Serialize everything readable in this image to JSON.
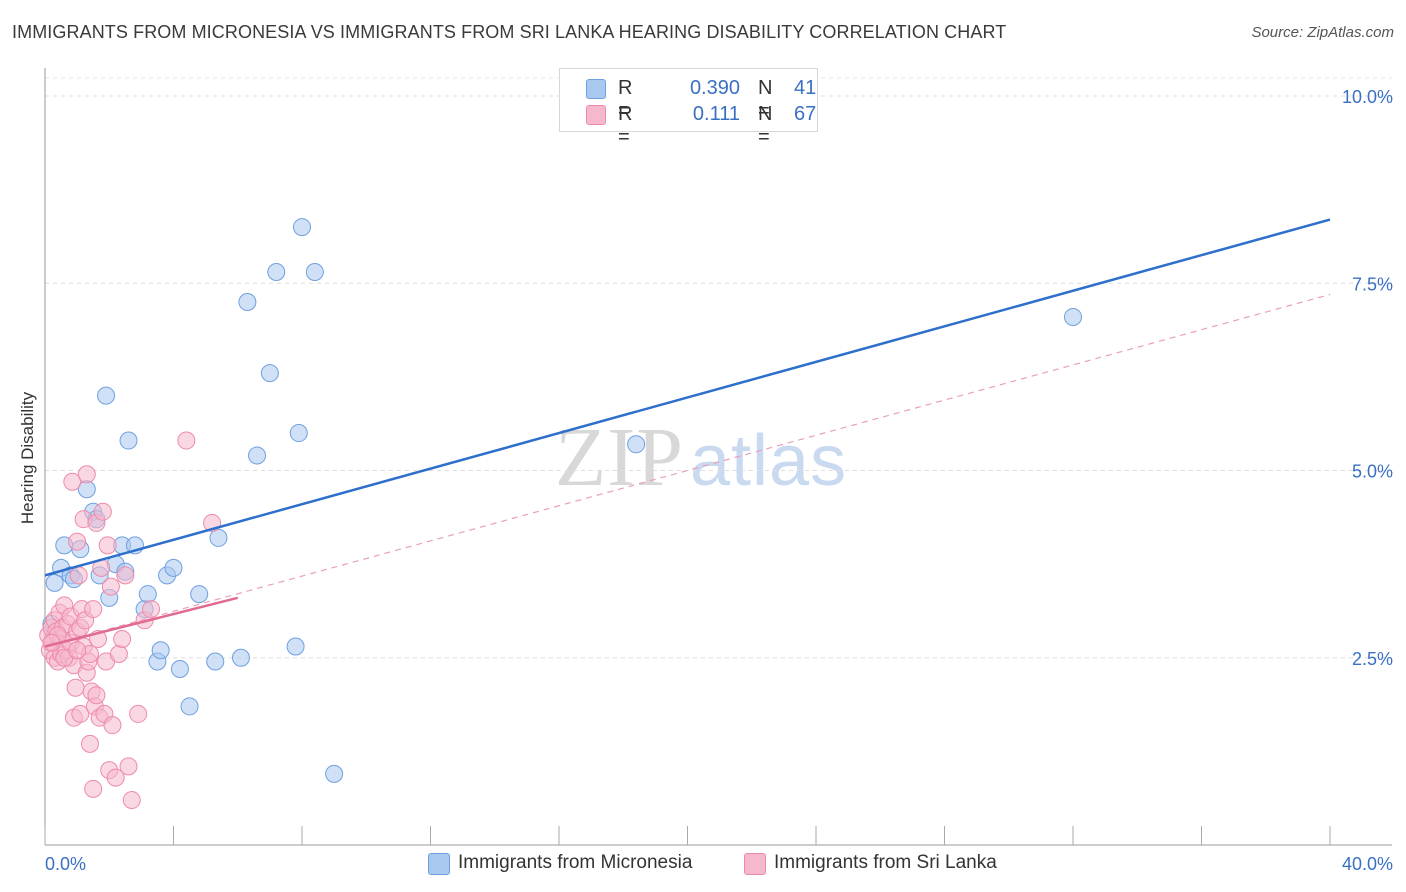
{
  "header": {
    "title": "IMMIGRANTS FROM MICRONESIA VS IMMIGRANTS FROM SRI LANKA HEARING DISABILITY CORRELATION CHART",
    "source": "Source: ZipAtlas.com"
  },
  "watermark": {
    "zip": "ZIP",
    "atlas": "atlas"
  },
  "legend_top": {
    "rows": [
      {
        "r_label": "R =",
        "r_value": "0.390",
        "n_label": "N =",
        "n_value": "41",
        "color": "#a9c8f0"
      },
      {
        "r_label": "R =",
        "r_value": "0.111",
        "n_label": "N =",
        "n_value": "67",
        "color": "#f6b8cc"
      }
    ]
  },
  "legend_bottom": {
    "items": [
      {
        "label": "Immigrants from Micronesia",
        "color": "#a9c8f0"
      },
      {
        "label": "Immigrants from Sri Lanka",
        "color": "#f6b8cc"
      }
    ]
  },
  "chart_data": {
    "type": "scatter",
    "title": "IMMIGRANTS FROM MICRONESIA VS IMMIGRANTS FROM SRI LANKA HEARING DISABILITY CORRELATION CHART",
    "xlabel": "",
    "ylabel": "Hearing Disability",
    "xlim": [
      0,
      40
    ],
    "ylim": [
      0,
      10.5
    ],
    "x_tick_labels": [
      "0.0%",
      "40.0%"
    ],
    "y_ticks": [
      2.5,
      5.0,
      7.5,
      10.0
    ],
    "y_tick_labels": [
      "2.5%",
      "5.0%",
      "7.5%",
      "10.0%"
    ],
    "grid": true,
    "legend_position": "top-center",
    "series": [
      {
        "name": "Immigrants from Micronesia",
        "color": "#6fa0e0",
        "fill": "#a9c8f0",
        "trend": {
          "x": [
            0,
            40
          ],
          "y": [
            3.6,
            8.35
          ],
          "color": "#2e6fcc",
          "style": "solid"
        },
        "points": [
          [
            0.3,
            3.5
          ],
          [
            0.5,
            3.7
          ],
          [
            0.6,
            4.0
          ],
          [
            0.8,
            3.6
          ],
          [
            0.9,
            3.55
          ],
          [
            1.1,
            3.95
          ],
          [
            1.3,
            4.75
          ],
          [
            1.5,
            4.45
          ],
          [
            1.6,
            4.35
          ],
          [
            1.7,
            3.6
          ],
          [
            1.9,
            6.0
          ],
          [
            2.0,
            3.3
          ],
          [
            2.2,
            3.75
          ],
          [
            2.4,
            4.0
          ],
          [
            2.5,
            3.65
          ],
          [
            2.6,
            5.4
          ],
          [
            2.8,
            4.0
          ],
          [
            3.1,
            3.15
          ],
          [
            3.2,
            3.35
          ],
          [
            3.5,
            2.45
          ],
          [
            3.6,
            2.6
          ],
          [
            3.8,
            3.6
          ],
          [
            4.0,
            3.7
          ],
          [
            4.2,
            2.35
          ],
          [
            4.5,
            1.85
          ],
          [
            4.8,
            3.35
          ],
          [
            5.3,
            2.45
          ],
          [
            5.4,
            4.1
          ],
          [
            6.1,
            2.5
          ],
          [
            6.3,
            7.25
          ],
          [
            6.6,
            5.2
          ],
          [
            7.0,
            6.3
          ],
          [
            7.2,
            7.65
          ],
          [
            7.8,
            2.65
          ],
          [
            7.9,
            5.5
          ],
          [
            8.0,
            8.25
          ],
          [
            8.4,
            7.65
          ],
          [
            9.0,
            0.95
          ],
          [
            18.4,
            5.35
          ],
          [
            32.0,
            7.05
          ],
          [
            0.2,
            2.95
          ]
        ]
      },
      {
        "name": "Immigrants from Sri Lanka",
        "color": "#ee8aaa",
        "fill": "#f6b8cc",
        "trend": {
          "x": [
            0,
            6.0
          ],
          "y": [
            2.65,
            3.3
          ],
          "color": "#e06a92",
          "style": "solid"
        },
        "trend_extended": {
          "x": [
            0,
            40
          ],
          "y": [
            2.65,
            7.35
          ],
          "color": "#e8a0b8",
          "style": "dashed"
        },
        "points": [
          [
            0.1,
            2.8
          ],
          [
            0.15,
            2.6
          ],
          [
            0.2,
            2.9
          ],
          [
            0.25,
            2.7
          ],
          [
            0.3,
            2.5
          ],
          [
            0.3,
            3.0
          ],
          [
            0.35,
            2.85
          ],
          [
            0.4,
            2.45
          ],
          [
            0.45,
            3.1
          ],
          [
            0.5,
            2.75
          ],
          [
            0.5,
            2.55
          ],
          [
            0.55,
            2.9
          ],
          [
            0.6,
            3.2
          ],
          [
            0.65,
            2.6
          ],
          [
            0.7,
            2.95
          ],
          [
            0.75,
            2.5
          ],
          [
            0.8,
            3.05
          ],
          [
            0.8,
            2.7
          ],
          [
            0.85,
            4.85
          ],
          [
            0.9,
            2.4
          ],
          [
            0.9,
            1.7
          ],
          [
            0.95,
            2.1
          ],
          [
            1.0,
            4.05
          ],
          [
            1.0,
            2.85
          ],
          [
            1.05,
            3.6
          ],
          [
            1.1,
            2.9
          ],
          [
            1.1,
            1.75
          ],
          [
            1.15,
            3.15
          ],
          [
            1.2,
            2.65
          ],
          [
            1.2,
            4.35
          ],
          [
            1.25,
            3.0
          ],
          [
            1.3,
            2.3
          ],
          [
            1.3,
            4.95
          ],
          [
            1.35,
            2.45
          ],
          [
            1.4,
            2.55
          ],
          [
            1.4,
            1.35
          ],
          [
            1.45,
            2.05
          ],
          [
            1.5,
            3.15
          ],
          [
            1.5,
            0.75
          ],
          [
            1.55,
            1.85
          ],
          [
            1.6,
            2.0
          ],
          [
            1.6,
            4.3
          ],
          [
            1.65,
            2.75
          ],
          [
            1.7,
            1.7
          ],
          [
            1.75,
            3.7
          ],
          [
            1.8,
            4.45
          ],
          [
            1.85,
            1.75
          ],
          [
            1.9,
            2.45
          ],
          [
            1.95,
            4.0
          ],
          [
            2.0,
            1.0
          ],
          [
            2.05,
            3.45
          ],
          [
            2.1,
            1.6
          ],
          [
            2.2,
            0.9
          ],
          [
            2.3,
            2.55
          ],
          [
            2.4,
            2.75
          ],
          [
            2.5,
            3.6
          ],
          [
            2.6,
            1.05
          ],
          [
            2.7,
            0.6
          ],
          [
            2.9,
            1.75
          ],
          [
            3.1,
            3.0
          ],
          [
            3.3,
            3.15
          ],
          [
            4.4,
            5.4
          ],
          [
            5.2,
            4.3
          ],
          [
            0.4,
            2.8
          ],
          [
            0.6,
            2.5
          ],
          [
            1.0,
            2.6
          ],
          [
            0.2,
            2.7
          ]
        ]
      }
    ]
  }
}
